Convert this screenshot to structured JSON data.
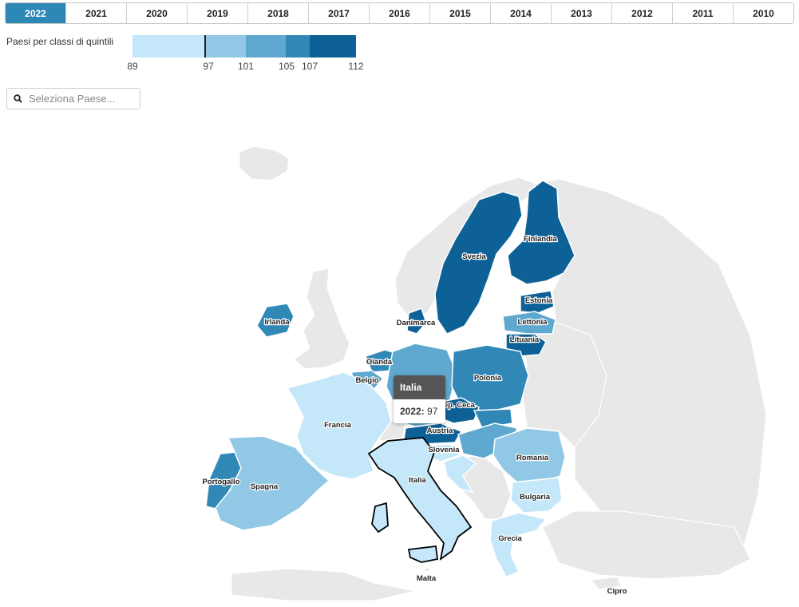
{
  "years": [
    {
      "label": "2022",
      "active": true
    },
    {
      "label": "2021"
    },
    {
      "label": "2020"
    },
    {
      "label": "2019"
    },
    {
      "label": "2018"
    },
    {
      "label": "2017"
    },
    {
      "label": "2016"
    },
    {
      "label": "2015"
    },
    {
      "label": "2014"
    },
    {
      "label": "2013"
    },
    {
      "label": "2012"
    },
    {
      "label": "2011"
    },
    {
      "label": "2010"
    }
  ],
  "legend": {
    "title": "Paesi per classi di quintili",
    "breaks": [
      "89",
      "97",
      "101",
      "105",
      "107",
      "112"
    ],
    "colors": [
      "#c4e7fa",
      "#91c8e6",
      "#5fa9d0",
      "#3188b7",
      "#0d6197"
    ],
    "marker_value": 97
  },
  "search": {
    "placeholder": "Seleziona Paese..."
  },
  "map": {
    "countries": [
      {
        "name": "Finlandia"
      },
      {
        "name": "Svezia"
      },
      {
        "name": "Estonia"
      },
      {
        "name": "Lettonia"
      },
      {
        "name": "Lituania"
      },
      {
        "name": "Danimarca"
      },
      {
        "name": "Irlanda"
      },
      {
        "name": "Olanda"
      },
      {
        "name": "Belgio"
      },
      {
        "name": "Polonia"
      },
      {
        "name": "Rep. Ceca"
      },
      {
        "name": "Austria"
      },
      {
        "name": "Slovenia"
      },
      {
        "name": "Francia"
      },
      {
        "name": "Romania"
      },
      {
        "name": "Portogallo"
      },
      {
        "name": "Spagna"
      },
      {
        "name": "Italia"
      },
      {
        "name": "Bulgaria"
      },
      {
        "name": "Grecia"
      },
      {
        "name": "Malta"
      },
      {
        "name": "Cipro"
      }
    ]
  },
  "tooltip": {
    "country": "Italia",
    "year_label": "2022:",
    "value": "97"
  }
}
